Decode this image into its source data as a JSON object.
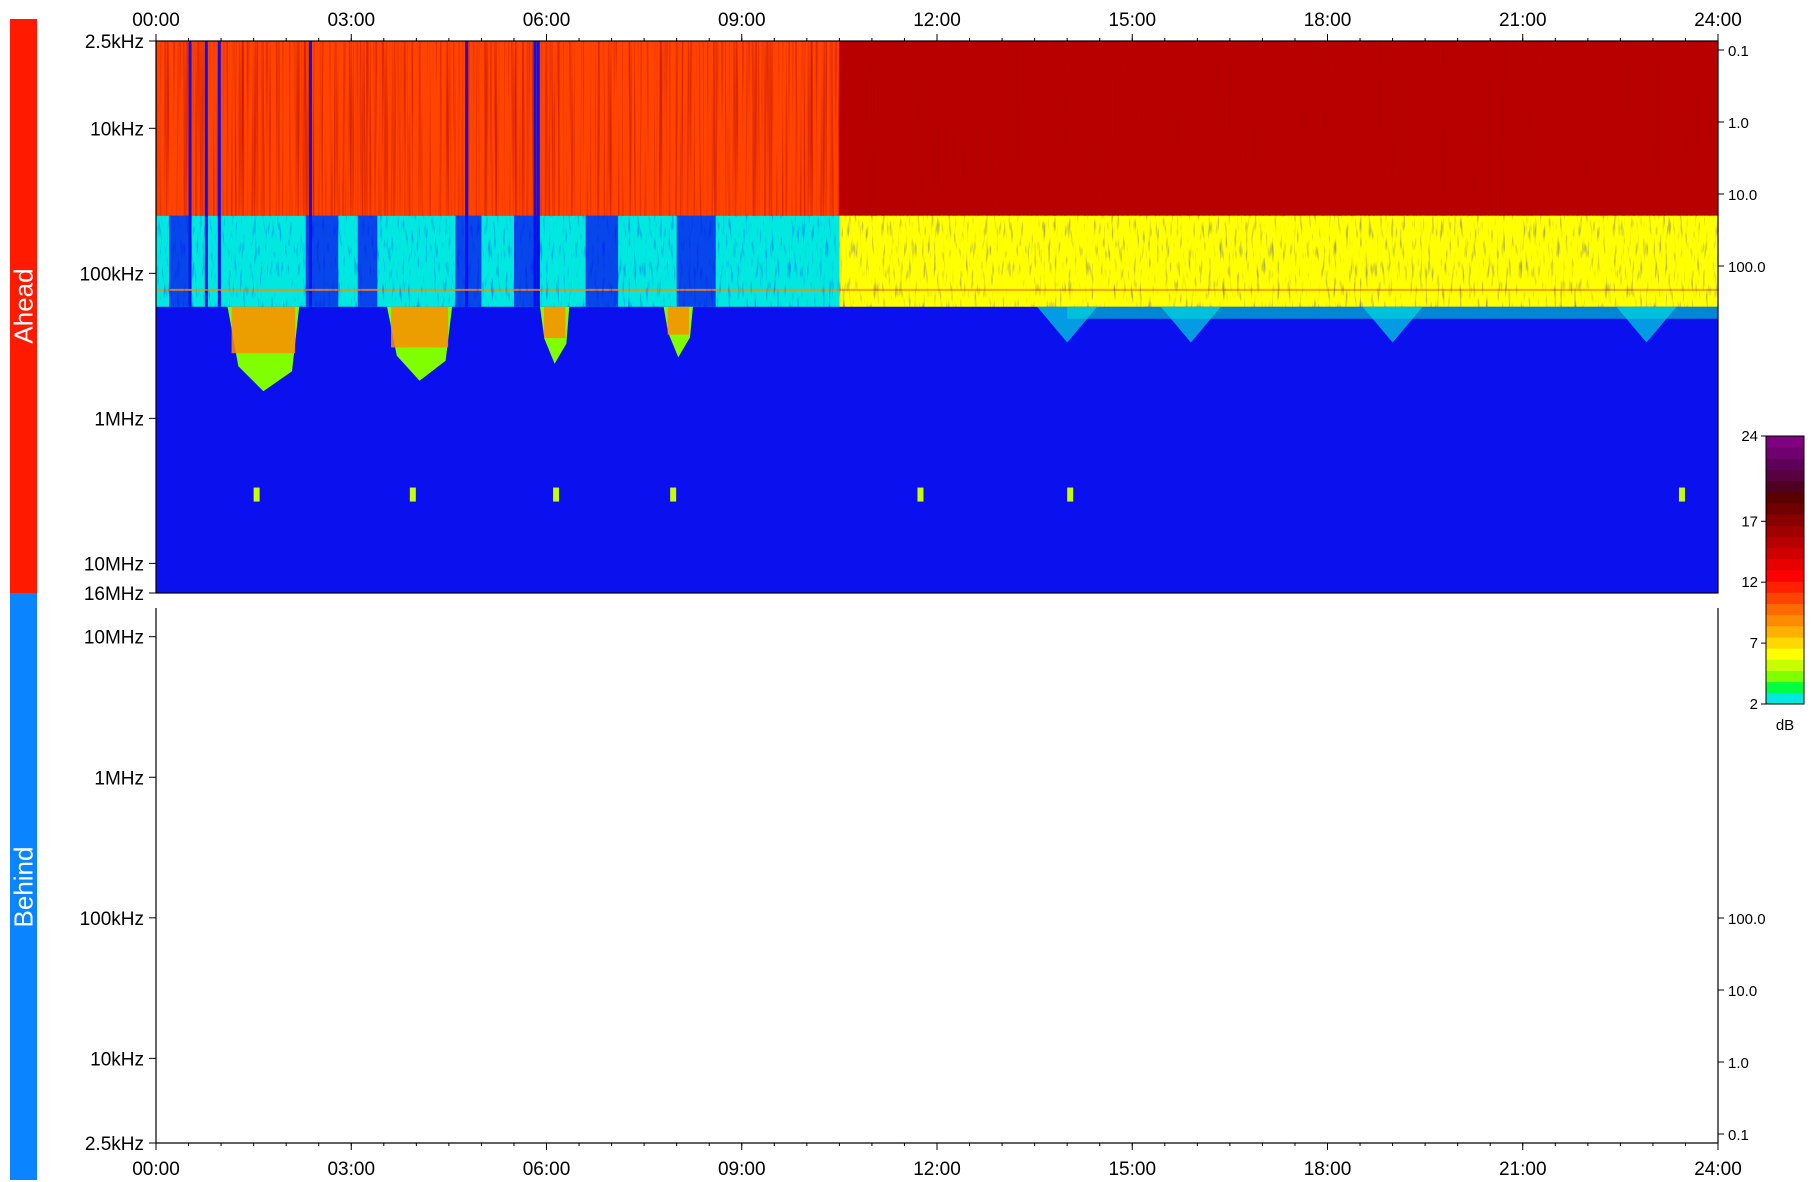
{
  "panels": {
    "ahead_label": "Ahead",
    "behind_label": "Behind",
    "ahead_color": "#ff1a00",
    "behind_color": "#0a84ff"
  },
  "chart_data": [
    {
      "type": "heatmap",
      "name": "Ahead",
      "x_ticks": [
        "00:00",
        "03:00",
        "06:00",
        "09:00",
        "12:00",
        "15:00",
        "18:00",
        "21:00",
        "24:00"
      ],
      "x_range_hours": [
        0,
        24
      ],
      "y_scale": "log",
      "y_range_hz": [
        2500,
        16000000
      ],
      "y_ticks": [
        {
          "label": "2.5kHz",
          "hz": 2500
        },
        {
          "label": "10kHz",
          "hz": 10000
        },
        {
          "label": "100kHz",
          "hz": 100000
        },
        {
          "label": "1MHz",
          "hz": 1000000
        },
        {
          "label": "10MHz",
          "hz": 10000000
        },
        {
          "label": "16MHz",
          "hz": 16000000
        }
      ],
      "right_ticks": [
        "0.1",
        "1.0",
        "10.0",
        "100.0"
      ],
      "bands": [
        {
          "from_hz": 2500,
          "to_hz": 40000,
          "level_db_before_10_30": 11,
          "level_db_after_10_30": 15
        },
        {
          "from_hz": 40000,
          "to_hz": 170000,
          "level_db_before_10_30": 2,
          "level_db_after_10_30": 6
        },
        {
          "from_hz": 170000,
          "to_hz": 16000000,
          "level_db": 0
        }
      ],
      "event_times_hours": [
        1.5,
        3.9,
        6.1,
        7.9,
        11.7,
        14.0,
        23.4
      ]
    },
    {
      "type": "heatmap",
      "name": "Behind",
      "x_ticks": [
        "00:00",
        "03:00",
        "06:00",
        "09:00",
        "12:00",
        "15:00",
        "18:00",
        "21:00",
        "24:00"
      ],
      "y_scale": "log",
      "y_ticks": [
        {
          "label": "10MHz",
          "hz": 10000000
        },
        {
          "label": "1MHz",
          "hz": 1000000
        },
        {
          "label": "100kHz",
          "hz": 100000
        },
        {
          "label": "10kHz",
          "hz": 10000
        },
        {
          "label": "2.5kHz",
          "hz": 2500
        }
      ],
      "right_ticks": [
        "100.0",
        "10.0",
        "1.0",
        "0.1"
      ],
      "empty": true
    }
  ],
  "colorbar": {
    "unit": "dB",
    "ticks": [
      "24",
      "17",
      "12",
      "7",
      "2"
    ],
    "range_db": [
      2,
      24
    ],
    "colors": [
      "#00e8e0",
      "#00ff40",
      "#7fff00",
      "#c8ff00",
      "#ffff00",
      "#ffd800",
      "#ffb000",
      "#ff8c00",
      "#ff6a00",
      "#ff4400",
      "#ff2000",
      "#ff0000",
      "#e80000",
      "#d00000",
      "#b80000",
      "#a00000",
      "#880000",
      "#700000",
      "#5a0000",
      "#500020",
      "#580040",
      "#600058",
      "#700070",
      "#800080"
    ]
  }
}
